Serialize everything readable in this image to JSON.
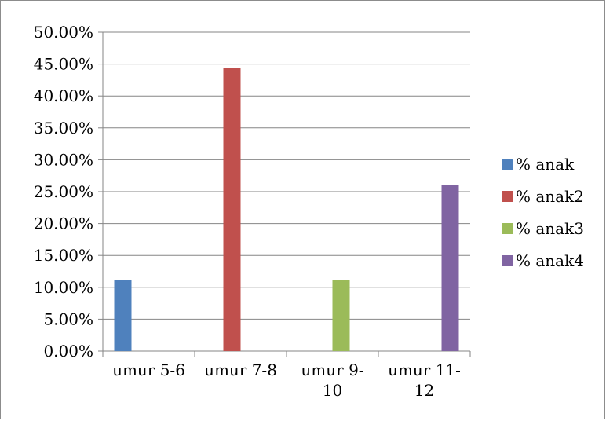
{
  "chart_data": {
    "type": "bar",
    "categories": [
      [
        "umur 5-6"
      ],
      [
        "umur 7-8"
      ],
      [
        "umur 9-",
        "10"
      ],
      [
        "umur 11-",
        "12"
      ]
    ],
    "series": [
      {
        "name": "% anak",
        "color": "#4f81bd",
        "values": [
          0.111,
          0,
          0,
          0
        ]
      },
      {
        "name": "% anak2",
        "color": "#c0504d",
        "values": [
          0,
          0.444,
          0,
          0
        ]
      },
      {
        "name": "% anak3",
        "color": "#9bbb59",
        "values": [
          0,
          0,
          0.111,
          0
        ]
      },
      {
        "name": "% anak4",
        "color": "#8064a2",
        "values": [
          0,
          0,
          0,
          0.26
        ]
      }
    ],
    "yticks": [
      "0.00%",
      "5.00%",
      "10.00%",
      "15.00%",
      "20.00%",
      "25.00%",
      "30.00%",
      "35.00%",
      "40.00%",
      "45.00%",
      "50.00%"
    ],
    "ylim": [
      0,
      0.5
    ],
    "grid": true,
    "legend_position": "right",
    "title": "",
    "xlabel": "",
    "ylabel": ""
  }
}
